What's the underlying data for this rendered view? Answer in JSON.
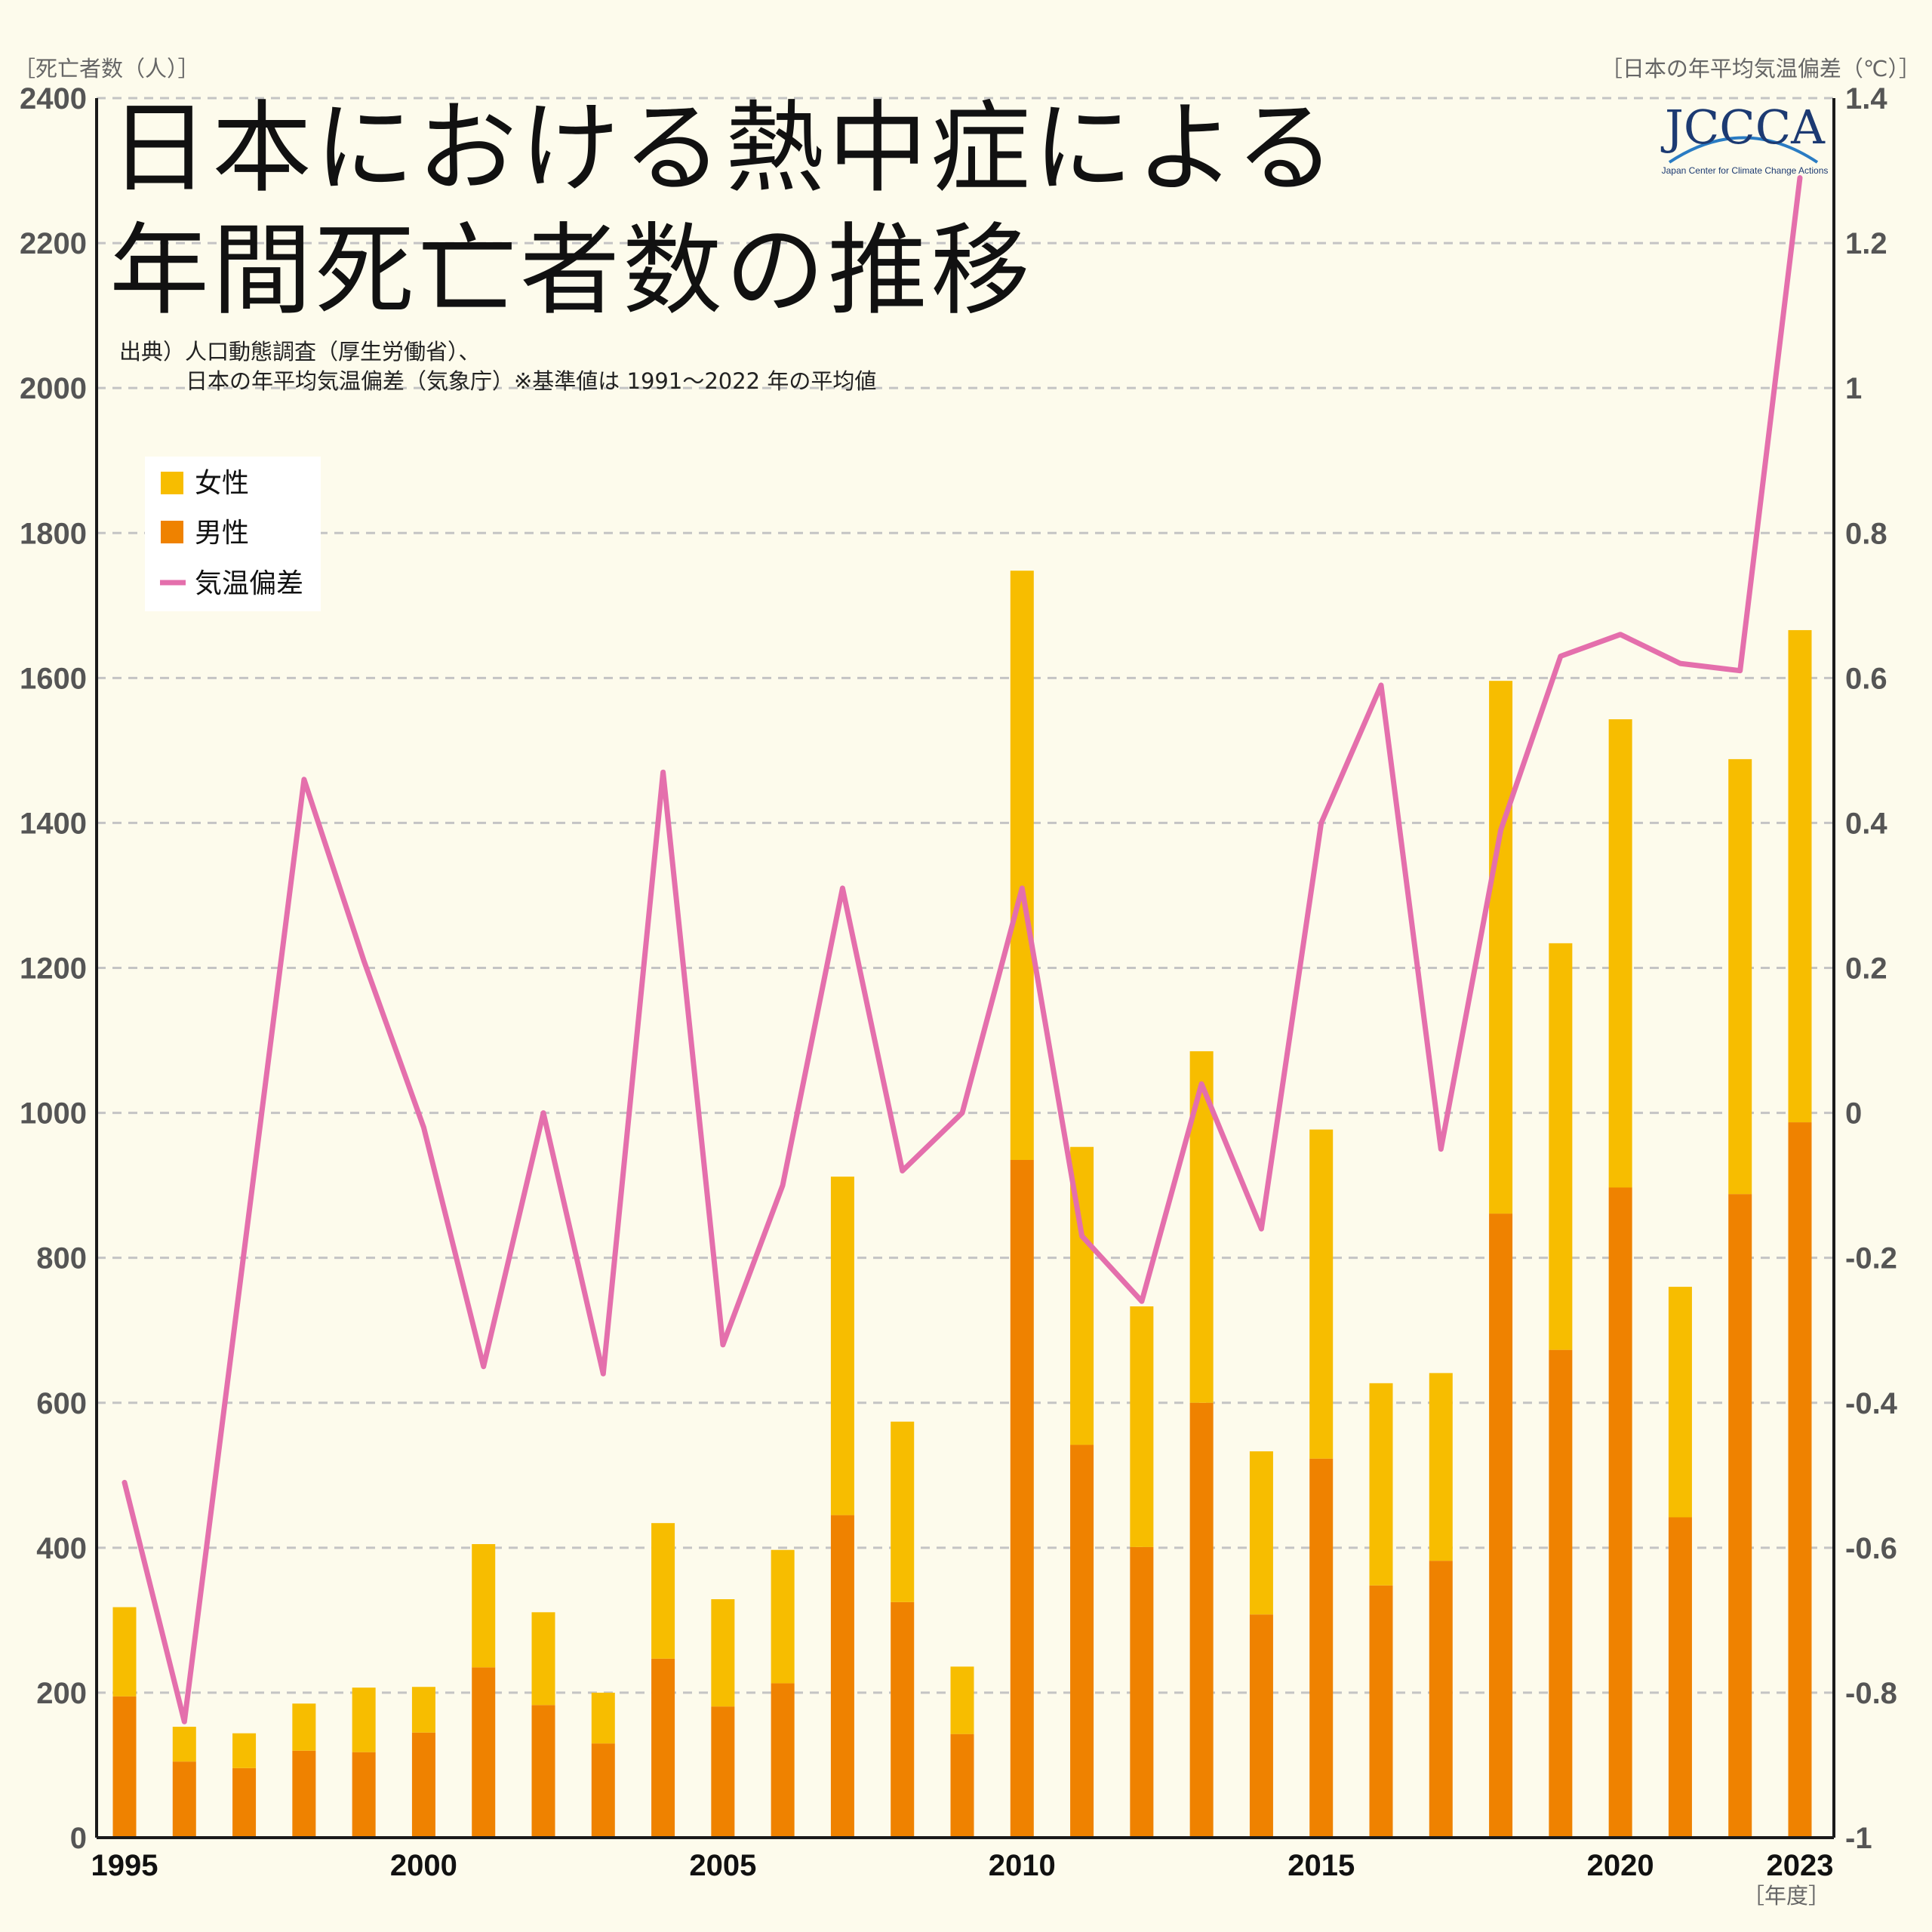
{
  "title": [
    "日本における熱中症による",
    "年間死亡者数の推移"
  ],
  "source": [
    "出典）人口動態調査（厚生労働省）、",
    "日本の年平均気温偏差（気象庁）※基準値は 1991〜2022 年の平均値"
  ],
  "logo": {
    "name": "JCCCA",
    "subtitle": "Japan Center for Climate Change Actions"
  },
  "chart_data": {
    "type": "bar",
    "stacked": true,
    "years": [
      1995,
      1996,
      1997,
      1998,
      1999,
      2000,
      2001,
      2002,
      2003,
      2004,
      2005,
      2006,
      2007,
      2008,
      2009,
      2010,
      2011,
      2012,
      2013,
      2014,
      2015,
      2016,
      2017,
      2018,
      2019,
      2020,
      2021,
      2022,
      2023
    ],
    "series": [
      {
        "name": "男性",
        "type": "bar",
        "color": "#ef8200",
        "values": [
          195,
          105,
          96,
          120,
          118,
          145,
          235,
          183,
          130,
          247,
          181,
          213,
          445,
          325,
          143,
          935,
          542,
          401,
          600,
          308,
          523,
          348,
          382,
          861,
          673,
          897,
          442,
          888,
          987
        ]
      },
      {
        "name": "女性",
        "type": "bar",
        "color": "#f7bd00",
        "values": [
          123,
          48,
          48,
          65,
          89,
          63,
          170,
          128,
          70,
          187,
          148,
          184,
          467,
          249,
          93,
          813,
          411,
          332,
          485,
          225,
          454,
          279,
          259,
          735,
          561,
          646,
          318,
          600,
          679
        ]
      },
      {
        "name": "気温偏差",
        "type": "line",
        "axis": "right",
        "color": "#e46fac",
        "values": [
          -0.51,
          -0.84,
          -0.19,
          0.46,
          0.21,
          -0.02,
          -0.35,
          0.0,
          -0.36,
          0.47,
          -0.32,
          -0.1,
          0.31,
          -0.08,
          0.0,
          0.31,
          -0.17,
          -0.26,
          0.04,
          -0.16,
          0.4,
          0.59,
          -0.05,
          0.39,
          0.63,
          0.66,
          0.62,
          0.61,
          1.29
        ]
      }
    ],
    "legend": [
      "女性",
      "男性",
      "気温偏差"
    ],
    "legend_position": "top-left",
    "y_left": {
      "label": "［死亡者数（人）］",
      "range": [
        0,
        2400
      ],
      "ticks": [
        "0",
        "200",
        "400",
        "600",
        "800",
        "1000",
        "1200",
        "1400",
        "1600",
        "1800",
        "2000",
        "2200",
        "2400"
      ]
    },
    "y_right": {
      "label": "［日本の年平均気温偏差（℃）］",
      "range": [
        -1,
        1.4
      ],
      "ticks": [
        "-1",
        "-0.8",
        "-0.6",
        "-0.4",
        "-0.2",
        "0",
        "0.2",
        "0.4",
        "0.6",
        "0.8",
        "1",
        "1.2",
        "1.4"
      ]
    },
    "x": {
      "label": "［年度］",
      "ticks": [
        "1995",
        "2000",
        "2005",
        "2010",
        "2015",
        "2020",
        "2023"
      ]
    },
    "grid": true
  }
}
